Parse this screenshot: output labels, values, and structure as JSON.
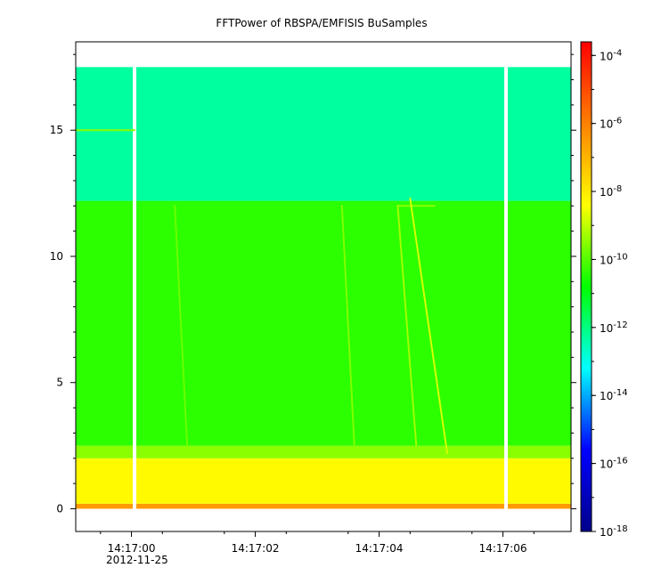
{
  "chart_data": {
    "type": "heatmap",
    "title": "FFTPower of RBSPA/EMFISIS  BuSamples",
    "xlabel": "",
    "ylabel": "",
    "date_label": "2012-11-25",
    "x_ticks": [
      "14:17:00",
      "14:17:02",
      "14:17:04",
      "14:17:06"
    ],
    "y_ticks": [
      0,
      5,
      10,
      15
    ],
    "ylim": [
      -0.9,
      18.5
    ],
    "x_axis_seconds_range": [
      -0.9,
      7.1
    ],
    "colorbar": {
      "scale": "log",
      "range_exponents": [
        -18,
        -3.6
      ],
      "tick_exponents": [
        -18,
        -16,
        -14,
        -12,
        -10,
        -8,
        -6,
        -4
      ],
      "tick_labels": [
        "10-18",
        "10-16",
        "10-14",
        "10-12",
        "10-10",
        "10-8",
        "10-6",
        "10-4"
      ],
      "colormap": [
        "#00008b",
        "#0000ff",
        "#00ffff",
        "#00ff00",
        "#ffff00",
        "#ff8000",
        "#ff0000"
      ]
    },
    "bands": [
      {
        "y_range": [
          0.0,
          0.2
        ],
        "log_power": -6.5
      },
      {
        "y_range": [
          0.2,
          2.0
        ],
        "log_power": -8.3
      },
      {
        "y_range": [
          2.0,
          2.5
        ],
        "log_power": -9.5
      },
      {
        "y_range": [
          2.5,
          12.2
        ],
        "log_power": -10.4
      },
      {
        "y_range": [
          12.2,
          17.5
        ],
        "log_power": -12.3
      }
    ],
    "data_gaps_seconds": [
      0.05,
      6.05
    ],
    "features": [
      {
        "name": "15 Hz line",
        "t_range": [
          -0.9,
          0.05
        ],
        "y": 15.0,
        "log_power": -9.5
      },
      {
        "name": "12 Hz line",
        "t_range": [
          4.3,
          4.9
        ],
        "y": 12.0,
        "log_power": -9.5
      },
      {
        "name": "whistler",
        "t_start": 4.5,
        "y_start": 12.3,
        "t_end": 5.1,
        "y_end": 2.2,
        "log_power": -8.8
      },
      {
        "name": "whistler",
        "t_start": 4.3,
        "y_start": 12.0,
        "t_end": 4.6,
        "y_end": 2.5,
        "log_power": -9.3
      },
      {
        "name": "emission",
        "t_start": 3.4,
        "y_start": 12.0,
        "t_end": 3.6,
        "y_end": 2.5,
        "log_power": -9.6
      },
      {
        "name": "emission",
        "t_start": 0.7,
        "y_start": 12.0,
        "t_end": 0.9,
        "y_end": 2.5,
        "log_power": -9.8
      }
    ]
  }
}
